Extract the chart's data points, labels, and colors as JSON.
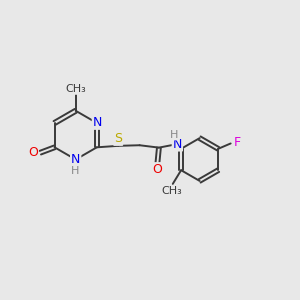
{
  "bg_color": "#e8e8e8",
  "bond_color": "#3a3a3a",
  "atom_colors": {
    "N": "#0000ee",
    "O": "#ee0000",
    "S": "#bbaa00",
    "F": "#dd00dd",
    "H": "#888888",
    "C": "#3a3a3a"
  },
  "font_size": 9,
  "lw": 1.4
}
